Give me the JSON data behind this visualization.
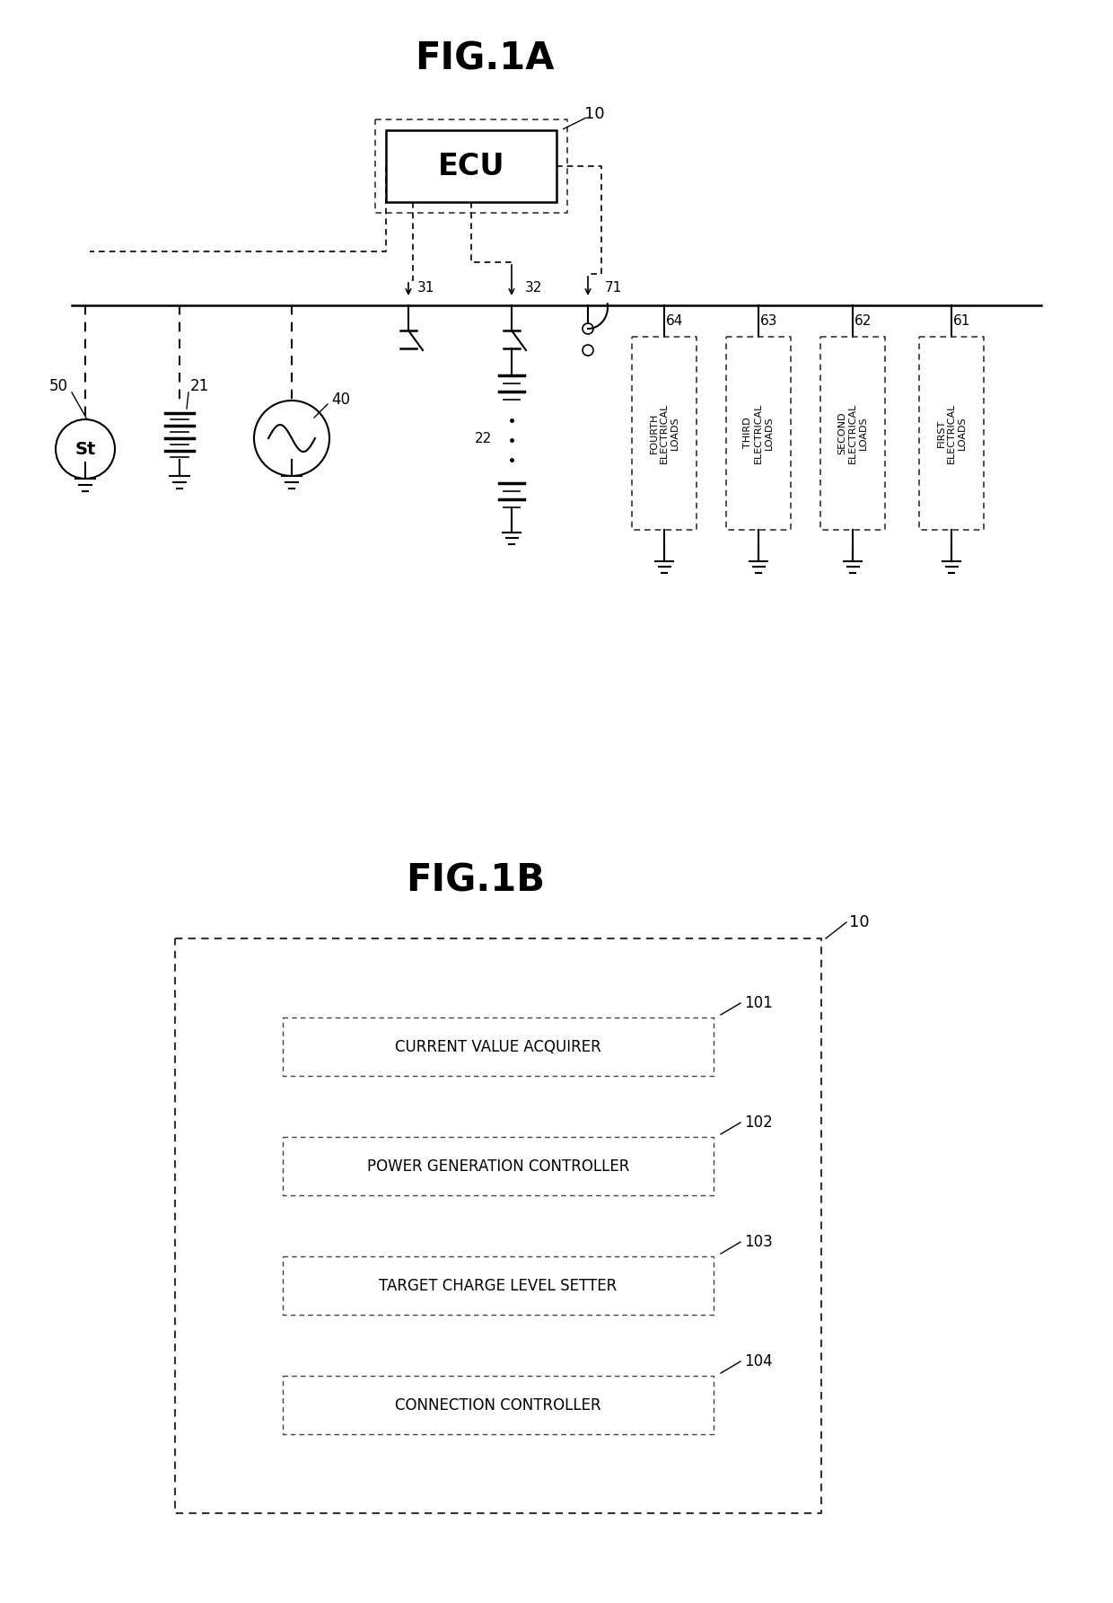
{
  "fig1a_title": "FIG.1A",
  "fig1b_title": "FIG.1B",
  "background_color": "#ffffff",
  "ecu_label": "ECU",
  "ecu_ref": "10",
  "load61_label": "FIRST\nELECTRICAL\nLOADS",
  "load62_label": "SECOND\nELECTRICAL\nLOADS",
  "load63_label": "THIRD\nELECTRICAL\nLOADS",
  "load64_label": "FOURTH\nELECTRICAL\nLOADS",
  "fig1b_components": [
    {
      "label": "CURRENT VALUE ACQUIRER",
      "ref": "101"
    },
    {
      "label": "POWER GENERATION CONTROLLER",
      "ref": "102"
    },
    {
      "label": "TARGET CHARGE LEVEL SETTER",
      "ref": "103"
    },
    {
      "label": "CONNECTION CONTROLLER",
      "ref": "104"
    }
  ]
}
